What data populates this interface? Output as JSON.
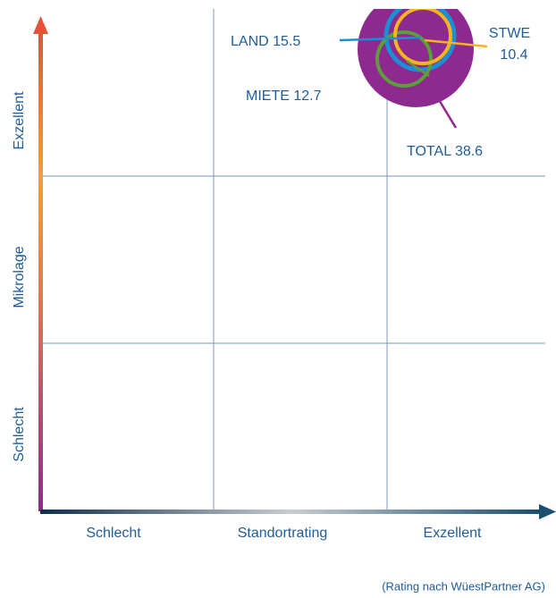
{
  "bubbles": [
    {
      "label": "LAND 15.5"
    },
    {
      "label": "STWE",
      "label2": "10.4"
    },
    {
      "label": "MIETE 12.7"
    },
    {
      "label": "TOTAL 38.6"
    }
  ],
  "y_axis": {
    "title": "Mikrolage",
    "low": "Schlecht",
    "high": "Exzellent"
  },
  "x_axis": {
    "title": "Standortrating",
    "low": "Schlecht",
    "high": "Exzellent"
  },
  "footnote": "(Rating nach WüestPartner AG)"
}
